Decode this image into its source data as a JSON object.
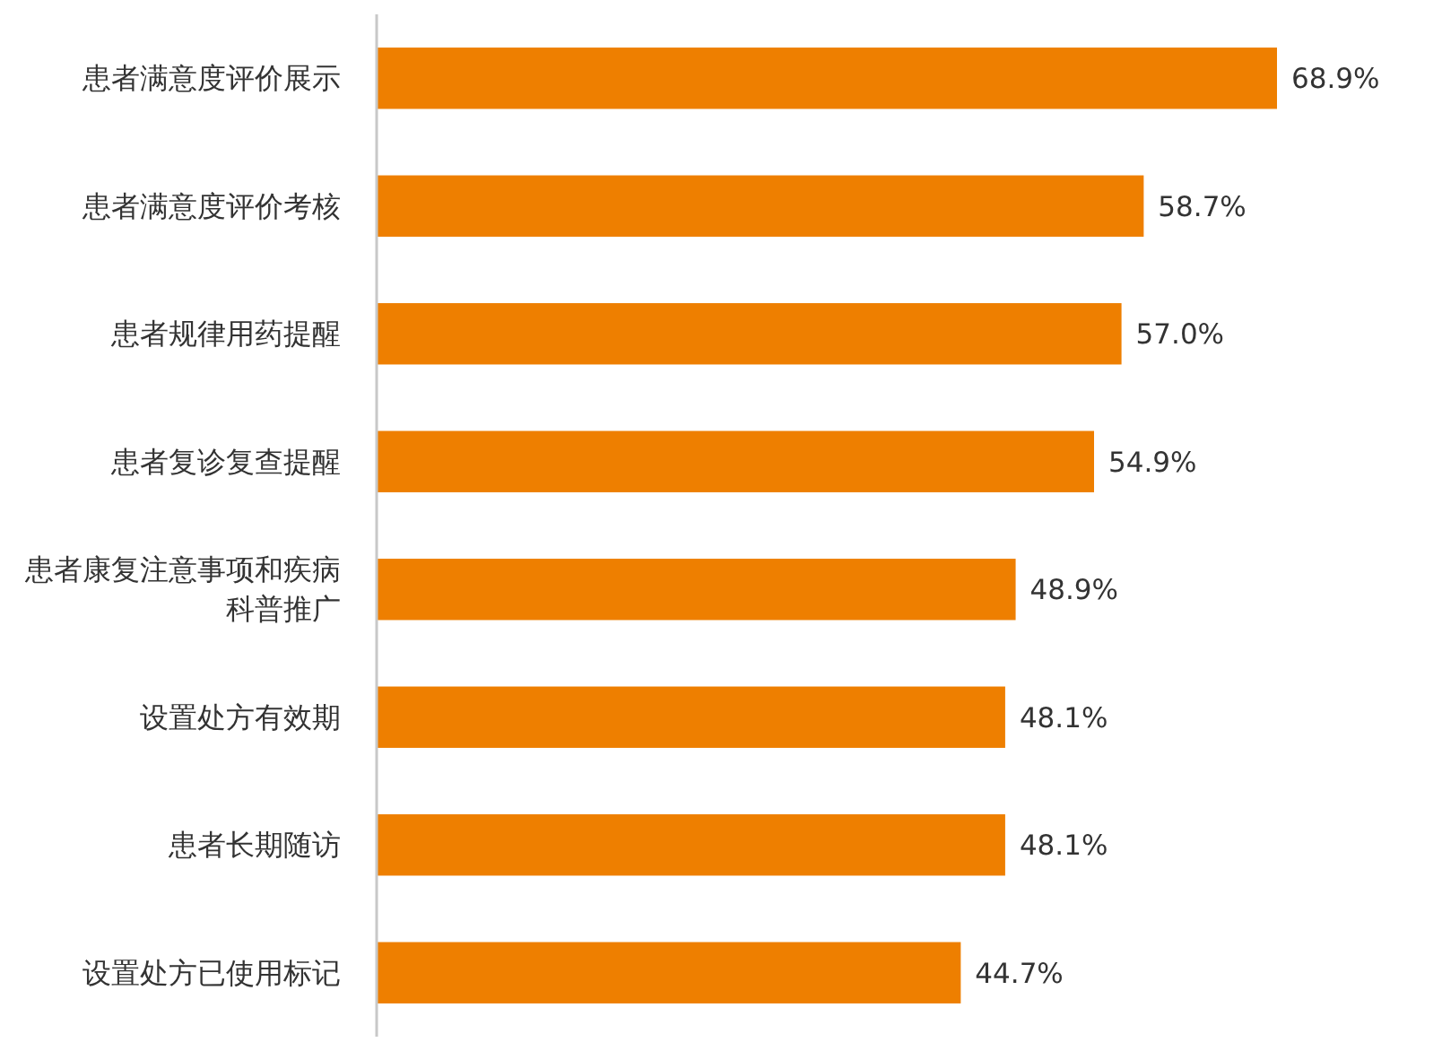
{
  "chart_data": {
    "type": "bar",
    "orientation": "horizontal",
    "categories": [
      "患者满意度评价展示",
      "患者满意度评价考核",
      "患者规律用药提醒",
      "患者复诊复查提醒",
      "患者康复注意事项和疾病科普推广",
      "设置处方有效期",
      "患者长期随访",
      "设置处方已使用标记"
    ],
    "values": [
      68.9,
      58.7,
      57.0,
      54.9,
      48.9,
      48.1,
      48.1,
      44.7
    ],
    "value_labels": [
      "68.9%",
      "58.7%",
      "57.0%",
      "54.9%",
      "48.9%",
      "48.1%",
      "48.1%",
      "44.7%"
    ],
    "color": "#ee7f00"
  }
}
